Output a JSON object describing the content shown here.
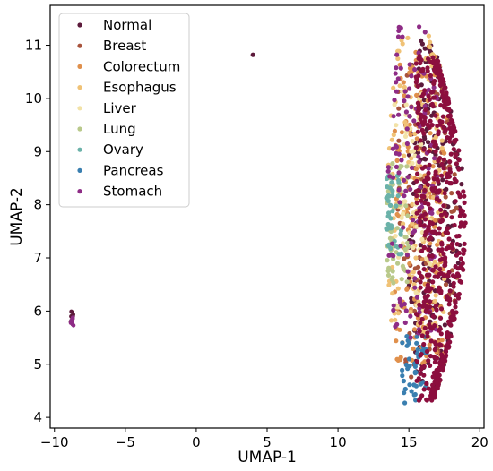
{
  "chart_data": {
    "type": "scatter",
    "title": "",
    "xlabel": "UMAP-1",
    "ylabel": "UMAP-2",
    "xlim": [
      -10.3,
      20.3
    ],
    "ylim": [
      3.8,
      11.75
    ],
    "xticks": [
      -10,
      -5,
      0,
      5,
      10,
      15,
      20
    ],
    "yticks": [
      4,
      5,
      6,
      7,
      8,
      9,
      10,
      11
    ],
    "x_tick_labels": [
      "−10",
      "−5",
      "0",
      "5",
      "10",
      "15",
      "20"
    ],
    "y_tick_labels": [
      "4",
      "5",
      "6",
      "7",
      "8",
      "9",
      "10",
      "11"
    ],
    "grid": false,
    "legend_position": "top-left",
    "series": [
      {
        "name": "Normal",
        "color": "#5c1a3b",
        "cluster": {
          "x": [
            15.0,
            18.8
          ],
          "y": [
            4.4,
            11.2
          ]
        },
        "points": [
          [
            4.0,
            10.82
          ],
          [
            -8.8,
            5.9
          ]
        ]
      },
      {
        "name": "Breast",
        "color": "#a8533c",
        "cluster": {
          "x": [
            14.2,
            18.5
          ],
          "y": [
            4.6,
            10.8
          ]
        },
        "points": []
      },
      {
        "name": "Colorectum",
        "color": "#e0904c",
        "cluster": {
          "x": [
            14.0,
            17.8
          ],
          "y": [
            5.0,
            11.0
          ]
        },
        "points": []
      },
      {
        "name": "Esophagus",
        "color": "#f0c276",
        "cluster": {
          "x": [
            13.5,
            17.5
          ],
          "y": [
            5.5,
            11.2
          ]
        },
        "points": []
      },
      {
        "name": "Liver",
        "color": "#f2e2a7",
        "cluster": {
          "x": [
            13.8,
            16.5
          ],
          "y": [
            6.0,
            10.5
          ]
        },
        "points": []
      },
      {
        "name": "Lung",
        "color": "#b9c98b",
        "cluster": {
          "x": [
            13.0,
            15.0
          ],
          "y": [
            6.5,
            8.8
          ]
        },
        "points": []
      },
      {
        "name": "Ovary",
        "color": "#6bb2a9",
        "cluster": {
          "x": [
            13.0,
            14.5
          ],
          "y": [
            7.0,
            8.6
          ]
        },
        "points": []
      },
      {
        "name": "Pancreas",
        "color": "#3a7fb0",
        "cluster": {
          "x": [
            14.5,
            16.3
          ],
          "y": [
            4.2,
            5.6
          ]
        },
        "points": []
      },
      {
        "name": "Stomach",
        "color": "#8e2c86",
        "cluster": {
          "x": [
            13.5,
            17.0
          ],
          "y": [
            5.5,
            11.4
          ]
        },
        "points": [
          [
            -8.75,
            5.82
          ]
        ]
      }
    ],
    "dense_series": {
      "name": "Normal (dominant)",
      "color": "#8c0e3e",
      "cluster": {
        "x": [
          15.5,
          19.0
        ],
        "y": [
          4.3,
          10.8
        ]
      }
    }
  }
}
